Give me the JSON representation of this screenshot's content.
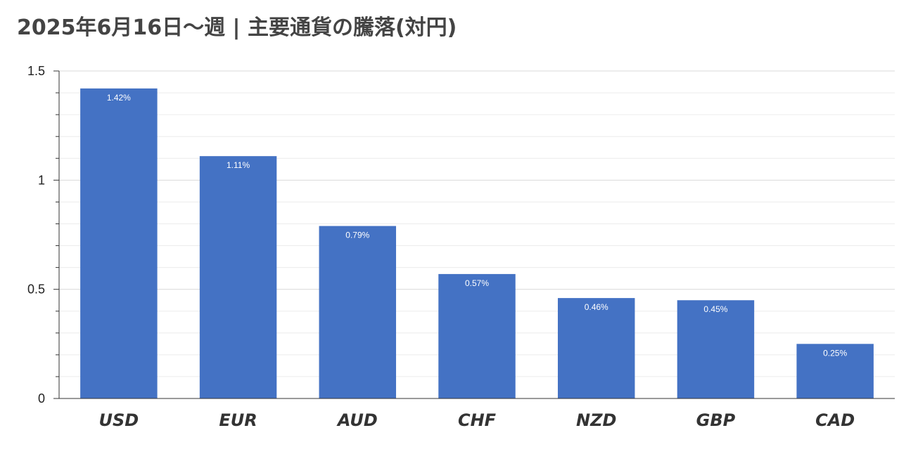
{
  "chart_data": {
    "type": "bar",
    "title": "2025年6月16日～週 | 主要通貨の騰落(対円)",
    "xlabel": "",
    "ylabel": "",
    "categories": [
      "USD",
      "EUR",
      "AUD",
      "CHF",
      "NZD",
      "GBP",
      "CAD"
    ],
    "values": [
      1.42,
      1.11,
      0.79,
      0.57,
      0.46,
      0.45,
      0.25
    ],
    "data_labels": [
      "1.42%",
      "1.11%",
      "0.79%",
      "0.57%",
      "0.46%",
      "0.45%",
      "0.25%"
    ],
    "ylim": [
      0,
      1.5
    ],
    "yticks": [
      0,
      0.5,
      1,
      1.5
    ],
    "ytick_labels": [
      "0",
      "0.5",
      "1",
      "1.5"
    ],
    "grid": true,
    "minor_grid_step": 0.1,
    "legend": "none",
    "bar_color": "#4472c4",
    "grid_color": "#d9d9d9"
  }
}
